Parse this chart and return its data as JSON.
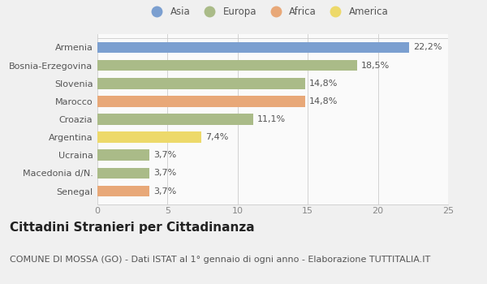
{
  "categories": [
    "Armenia",
    "Bosnia-Erzegovina",
    "Slovenia",
    "Marocco",
    "Croazia",
    "Argentina",
    "Ucraina",
    "Macedonia d/N.",
    "Senegal"
  ],
  "values": [
    22.2,
    18.5,
    14.8,
    14.8,
    11.1,
    7.4,
    3.7,
    3.7,
    3.7
  ],
  "labels": [
    "22,2%",
    "18,5%",
    "14,8%",
    "14,8%",
    "11,1%",
    "7,4%",
    "3,7%",
    "3,7%",
    "3,7%"
  ],
  "colors": [
    "#7B9FD0",
    "#AABB88",
    "#AABB88",
    "#E8A878",
    "#AABB88",
    "#EDD96A",
    "#AABB88",
    "#AABB88",
    "#E8A878"
  ],
  "legend_labels": [
    "Asia",
    "Europa",
    "Africa",
    "America"
  ],
  "legend_colors": [
    "#7B9FD0",
    "#AABB88",
    "#E8A878",
    "#EDD96A"
  ],
  "xlim": [
    0,
    25
  ],
  "xticks": [
    0,
    5,
    10,
    15,
    20,
    25
  ],
  "title": "Cittadini Stranieri per Cittadinanza",
  "subtitle": "COMUNE DI MOSSA (GO) - Dati ISTAT al 1° gennaio di ogni anno - Elaborazione TUTTITALIA.IT",
  "bg_color": "#f0f0f0",
  "bar_bg_color": "#fafafa",
  "title_fontsize": 11,
  "subtitle_fontsize": 8,
  "label_fontsize": 8,
  "ytick_fontsize": 8,
  "xtick_fontsize": 8
}
